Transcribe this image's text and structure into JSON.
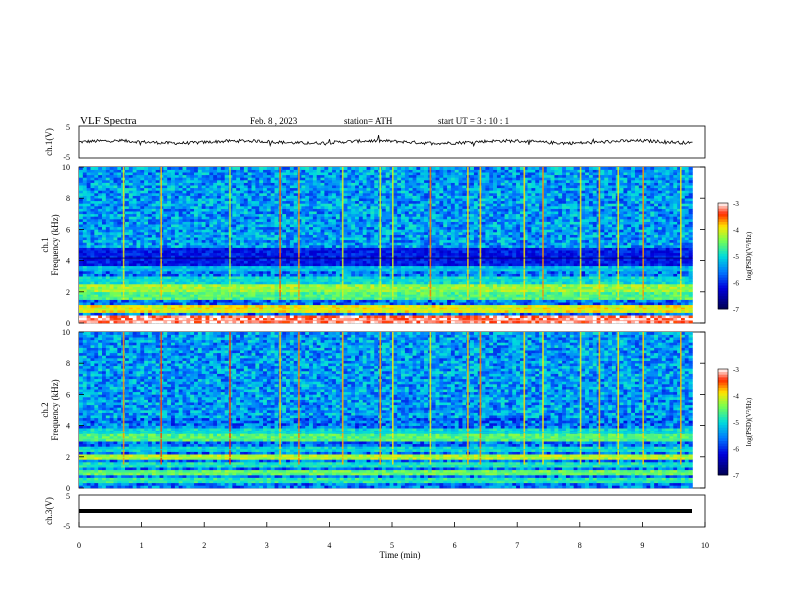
{
  "header": {
    "title": "VLF  Spectra",
    "date": "Feb. 8  , 2023",
    "station": "station= ATH",
    "start": "start  UT  =    3  : 10 : 1"
  },
  "chart_data": [
    {
      "id": "ch1-waveform",
      "type": "line",
      "ylabel": "ch.1(V)",
      "ylim": [
        -5,
        5
      ],
      "yticks": [
        "5",
        "-5"
      ],
      "xlim": [
        0,
        10
      ],
      "x_end": 9.8,
      "description_values": "noisy waveform around 0 V"
    },
    {
      "id": "ch1-spectrogram",
      "type": "heatmap",
      "ylabel": "Frequency  (kHz)",
      "channel_label": "ch.1",
      "ylim": [
        0,
        10
      ],
      "yticks": [
        "0",
        "2",
        "4",
        "6",
        "8",
        "10"
      ],
      "xlim": [
        0,
        10
      ],
      "x_end": 9.8,
      "colorbar": {
        "label": "log(PSD)(V²/Hz)",
        "range": [
          -7,
          -3
        ],
        "ticks": [
          "-3",
          "-4",
          "-5",
          "-6",
          "-7"
        ]
      },
      "bands": [
        {
          "f": 0.2,
          "level": -3.2
        },
        {
          "f": 0.9,
          "level": -4.0
        },
        {
          "f": 1.7,
          "level": -4.6
        },
        {
          "f": 2.2,
          "level": -4.3
        },
        {
          "f": 2.8,
          "level": -5.0
        },
        {
          "f": 3.5,
          "level": -5.2
        },
        {
          "f": 4.2,
          "level": -6.8
        }
      ],
      "impulses_min": [
        0.7,
        1.3,
        2.4,
        3.2,
        3.5,
        4.2,
        4.8,
        5.0,
        5.6,
        6.2,
        6.4,
        7.1,
        7.4,
        8.0,
        8.3,
        8.6,
        9.0,
        9.6
      ]
    },
    {
      "id": "ch2-spectrogram",
      "type": "heatmap",
      "ylabel": "Frequency  (kHz)",
      "channel_label": "ch.2",
      "ylim": [
        0,
        10
      ],
      "yticks": [
        "0",
        "2",
        "4",
        "6",
        "8",
        "10"
      ],
      "xlim": [
        0,
        10
      ],
      "x_end": 9.8,
      "colorbar": {
        "label": "log(PSD)(V²/Hz)",
        "range": [
          -7,
          -3
        ],
        "ticks": [
          "-3",
          "-4",
          "-5",
          "-6",
          "-7"
        ]
      },
      "bands": [
        {
          "f": 0.5,
          "level": -4.8
        },
        {
          "f": 1.0,
          "level": -4.5
        },
        {
          "f": 1.5,
          "level": -4.9
        },
        {
          "f": 2.0,
          "level": -4.2
        },
        {
          "f": 2.5,
          "level": -5.0
        },
        {
          "f": 3.2,
          "level": -4.6
        },
        {
          "f": 3.6,
          "level": -5.0
        }
      ],
      "impulses_min": [
        0.7,
        1.3,
        2.4,
        3.2,
        3.5,
        4.2,
        4.8,
        5.0,
        5.6,
        6.2,
        6.4,
        7.1,
        7.4,
        8.0,
        8.3,
        8.6,
        9.0,
        9.6
      ]
    },
    {
      "id": "ch3-waveform",
      "type": "line",
      "ylabel": "ch.3(V)",
      "ylim": [
        -5,
        5
      ],
      "yticks": [
        "5",
        "-5"
      ],
      "xlim": [
        0,
        10
      ],
      "x_end": 9.8,
      "constant_value": 0,
      "xlabel": "Time  (min)",
      "xticks": [
        "0",
        "1",
        "2",
        "3",
        "4",
        "5",
        "6",
        "7",
        "8",
        "9",
        "10"
      ]
    }
  ]
}
